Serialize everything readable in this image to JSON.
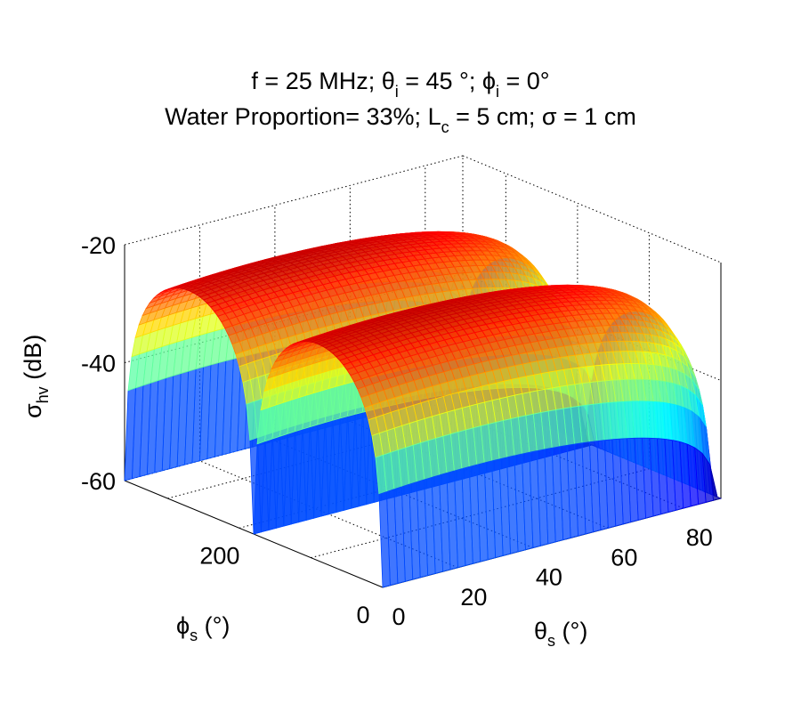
{
  "chart_data": {
    "type": "surface",
    "title_line1_parts": [
      "f = 25 MHz; θ",
      "i",
      " = 45 °; ϕ",
      "i",
      " = 0°"
    ],
    "title_line2_parts": [
      "Water Proportion= 33%; L",
      "c",
      " = 5 cm; σ = 1 cm"
    ],
    "xlabel": {
      "main": "ϕ",
      "sub": "s",
      "rest": " (°)"
    },
    "ylabel": {
      "main": "θ",
      "sub": "s",
      "rest": " (°)"
    },
    "zlabel": {
      "main": "σ",
      "sub": "hv",
      "rest": " (dB)"
    },
    "x_ticks": [
      "0",
      "200"
    ],
    "y_ticks": [
      "0",
      "20",
      "40",
      "60",
      "80"
    ],
    "z_ticks": [
      "-20",
      "-40",
      "-60"
    ],
    "xlim": [
      0,
      360
    ],
    "ylim": [
      0,
      90
    ],
    "zlim": [
      -60,
      -20
    ],
    "grid": true,
    "colormap": "jet",
    "z_peak_db": -22,
    "z_floor_db": -60,
    "null_phi_deg": [
      0,
      180,
      360
    ]
  }
}
